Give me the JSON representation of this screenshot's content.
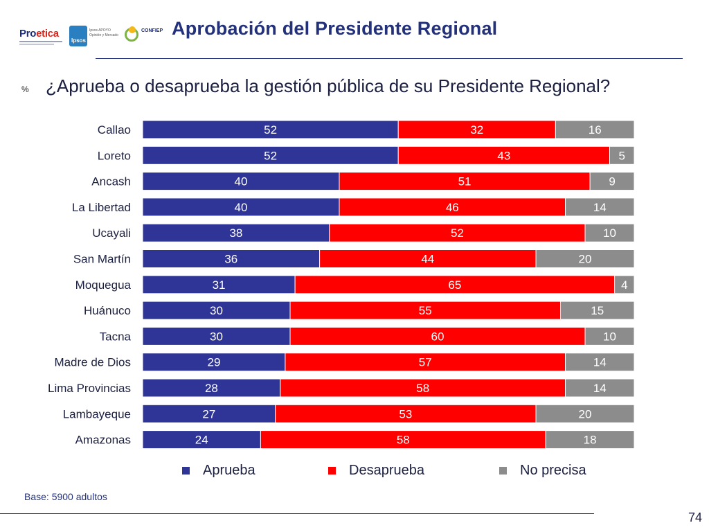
{
  "header": {
    "title": "Aprobación del Presidente Regional",
    "logos": {
      "proetica_a": "Pro",
      "proetica_b": "etica",
      "ipsos": "Ipsos",
      "ipsos_caption": "Ipsos APOYO Opinión y Mercado",
      "confiep": "CONFIEP"
    }
  },
  "question": {
    "unit": "%",
    "text": "¿Aprueba o desaprueba la gestión pública de su Presidente Regional?"
  },
  "chart_data": {
    "type": "bar",
    "orientation": "horizontal",
    "stacked": true,
    "unit": "%",
    "xlim": [
      0,
      100
    ],
    "categories": [
      "Callao",
      "Loreto",
      "Ancash",
      "La Libertad",
      "Ucayali",
      "San Martín",
      "Moquegua",
      "Huánuco",
      "Tacna",
      "Madre de Dios",
      "Lima Provincias",
      "Lambayeque",
      "Amazonas"
    ],
    "series": [
      {
        "name": "Aprueba",
        "color": "#2f3596",
        "values": [
          52,
          52,
          40,
          40,
          38,
          36,
          31,
          30,
          30,
          29,
          28,
          27,
          24
        ]
      },
      {
        "name": "Desaprueba",
        "color": "#ff0000",
        "values": [
          32,
          43,
          51,
          46,
          52,
          44,
          65,
          55,
          60,
          57,
          58,
          53,
          58
        ]
      },
      {
        "name": "No precisa",
        "color": "#8c8c8c",
        "values": [
          16,
          5,
          9,
          14,
          10,
          20,
          4,
          15,
          10,
          14,
          14,
          20,
          18
        ]
      }
    ],
    "legend_position": "bottom"
  },
  "footer": {
    "base": "Base: 5900 adultos",
    "page_number": "74"
  }
}
